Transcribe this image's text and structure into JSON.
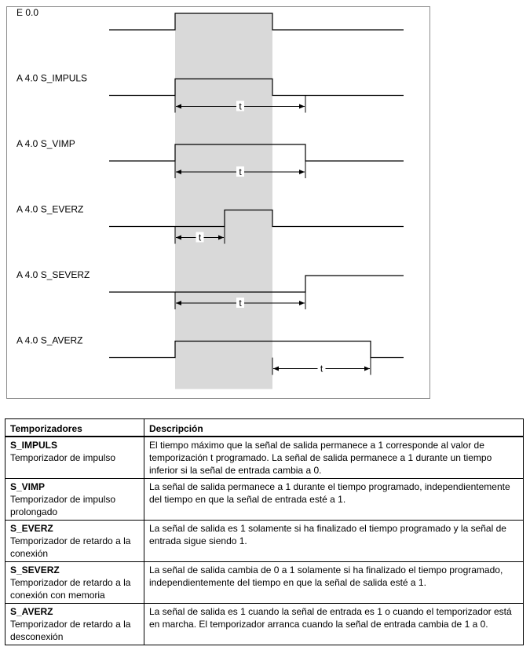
{
  "diagram": {
    "time_label": "t",
    "signals": [
      {
        "label": "E 0.0",
        "rises_at": 1,
        "falls_at": 3,
        "interval": null
      },
      {
        "label": "A 4.0   S_IMPULS",
        "rises_at": 1,
        "falls_at": 3,
        "interval": [
          1,
          4
        ]
      },
      {
        "label": "A 4.0   S_VIMP",
        "rises_at": 1,
        "falls_at": 4,
        "interval": [
          1,
          4
        ]
      },
      {
        "label": "A 4.0   S_EVERZ",
        "rises_at": 2,
        "falls_at": 3,
        "interval": [
          1,
          2
        ]
      },
      {
        "label": "A 4.0   S_SEVERZ",
        "rises_at": 4,
        "falls_at": null,
        "interval": [
          1,
          4
        ]
      },
      {
        "label": "A 4.0   S_AVERZ",
        "rises_at": 1,
        "falls_at": 5,
        "interval": [
          3,
          5
        ]
      }
    ]
  },
  "table": {
    "headers": [
      "Temporizadores",
      "Descripción"
    ],
    "rows": [
      {
        "name": "S_IMPULS",
        "subtitle": "Temporizador de impulso",
        "description": "El tiempo máximo que la señal de salida permanece a 1 corresponde al valor de temporización t programado. La señal de salida permanece a 1 durante un tiempo inferior si la señal de entrada cambia a 0."
      },
      {
        "name": "S_VIMP",
        "subtitle": "Temporizador de impulso prolongado",
        "description": "La señal de salida permanece a 1 durante el tiempo programado, independientemente del tiempo en que la señal de entrada esté a 1."
      },
      {
        "name": "S_EVERZ",
        "subtitle": "Temporizador de retardo a la conexión",
        "description": "La señal de salida es 1 solamente si ha finalizado el tiempo programado y la señal de entrada sigue siendo 1."
      },
      {
        "name": "S_SEVERZ",
        "subtitle": "Temporizador de retardo a la conexión con memoria",
        "description": "La señal de salida cambia de 0 a 1 solamente si ha finalizado el tiempo programado, independientemente del tiempo en que la señal de salida esté a 1."
      },
      {
        "name": "S_AVERZ",
        "subtitle": "Temporizador de retardo a la desconexión",
        "description": "La señal de salida es 1 cuando la señal de entrada es 1 o cuando el temporizador está en marcha. El temporizador arranca cuando la señal de entrada cambia de 1 a 0."
      }
    ]
  }
}
